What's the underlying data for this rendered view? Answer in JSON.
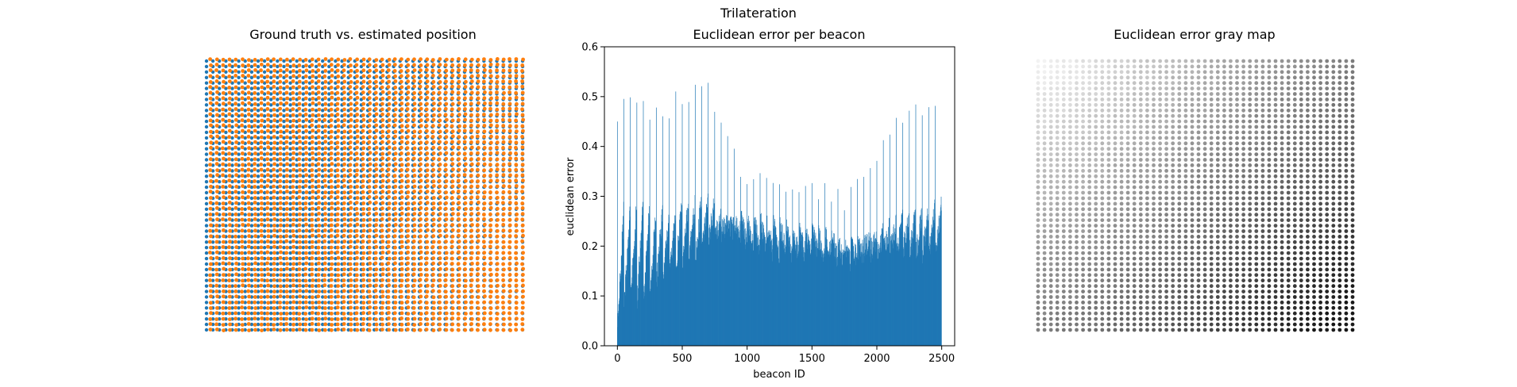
{
  "figure": {
    "suptitle": "Trilateration"
  },
  "chart_data": [
    {
      "type": "scatter",
      "title": "Ground truth vs. estimated position",
      "axes_visible": false,
      "grid": false,
      "series": [
        {
          "color": "#1f77b4",
          "points": "grid 50x50 ground-truth beacon positions"
        },
        {
          "color": "#ff7f0e",
          "points": "grid 50x50 estimated beacon positions"
        }
      ],
      "grid_size": 50
    },
    {
      "type": "bar",
      "title": "Euclidean error per beacon",
      "xlabel": "beacon ID",
      "ylabel": "euclidean error",
      "xlim": [
        -100,
        2600
      ],
      "ylim": [
        0,
        0.6
      ],
      "xticks": [
        0,
        500,
        1000,
        1500,
        2000,
        2500
      ],
      "xtick_labels": [
        "0",
        "500",
        "1000",
        "1500",
        "2000",
        "2500"
      ],
      "yticks": [
        0.0,
        0.1,
        0.2,
        0.3,
        0.4,
        0.5,
        0.6
      ],
      "ytick_labels": [
        "0.0",
        "0.1",
        "0.2",
        "0.3",
        "0.4",
        "0.5",
        "0.6"
      ],
      "bar_color": "#1f77b4",
      "n_beacons": 2500,
      "row_peaks": [
        0.49,
        0.5,
        0.52,
        0.52,
        0.51,
        0.49,
        0.5,
        0.48,
        0.47,
        0.53,
        0.52,
        0.51,
        0.53,
        0.53,
        0.53,
        0.47,
        0.45,
        0.43,
        0.41,
        0.37,
        0.35,
        0.35,
        0.35,
        0.34,
        0.34,
        0.33,
        0.32,
        0.33,
        0.33,
        0.34,
        0.33,
        0.32,
        0.33,
        0.32,
        0.32,
        0.3,
        0.32,
        0.34,
        0.37,
        0.39,
        0.41,
        0.43,
        0.44,
        0.46,
        0.46,
        0.48,
        0.49,
        0.5,
        0.51,
        0.51
      ],
      "row_base_start": [
        0.03,
        0.07,
        0.08,
        0.08,
        0.09,
        0.1,
        0.12,
        0.13,
        0.14,
        0.15,
        0.16,
        0.17,
        0.18,
        0.19,
        0.2,
        0.22,
        0.23,
        0.24,
        0.25,
        0.26,
        0.26,
        0.26,
        0.26,
        0.25,
        0.25,
        0.25,
        0.24,
        0.24,
        0.24,
        0.23,
        0.23,
        0.22,
        0.22,
        0.22,
        0.21,
        0.21,
        0.2,
        0.2,
        0.2,
        0.19,
        0.19,
        0.19,
        0.19,
        0.19,
        0.19,
        0.18,
        0.18,
        0.18,
        0.18,
        0.18
      ]
    },
    {
      "type": "scatter",
      "title": "Euclidean error gray map",
      "axes_visible": false,
      "grid": false,
      "colormap": "gray",
      "grid_size": 50
    }
  ]
}
